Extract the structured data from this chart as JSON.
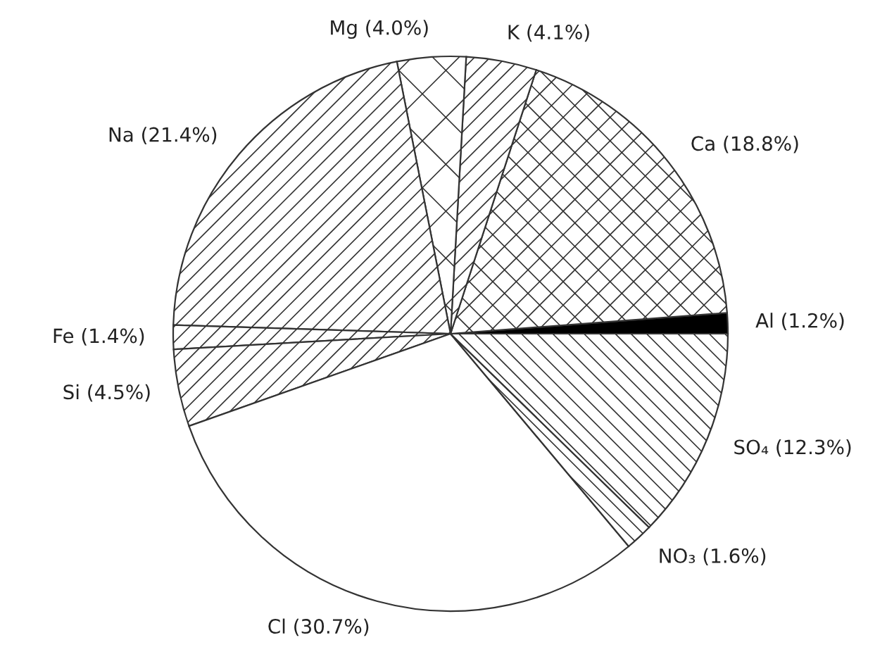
{
  "chart_data": {
    "type": "pie",
    "categories": [
      "Al (1.2%)",
      "Ca (18.8%)",
      "K (4.1%)",
      "Mg (4.0%)",
      "Na (21.4%)",
      "Fe (1.4%)",
      "Si (4.5%)",
      "Cl (30.7%)",
      "NO₃ (1.6%)",
      "SO₄ (12.3%)"
    ],
    "values": [
      1.2,
      18.8,
      4.1,
      4.0,
      21.4,
      1.4,
      4.5,
      30.7,
      1.6,
      12.3
    ],
    "colors": [
      "#000000",
      "#333333",
      "#333333",
      "#333333",
      "#333333",
      "#333333",
      "#333333",
      "#ffffff",
      "#333333",
      "#333333"
    ],
    "legend": false
  }
}
